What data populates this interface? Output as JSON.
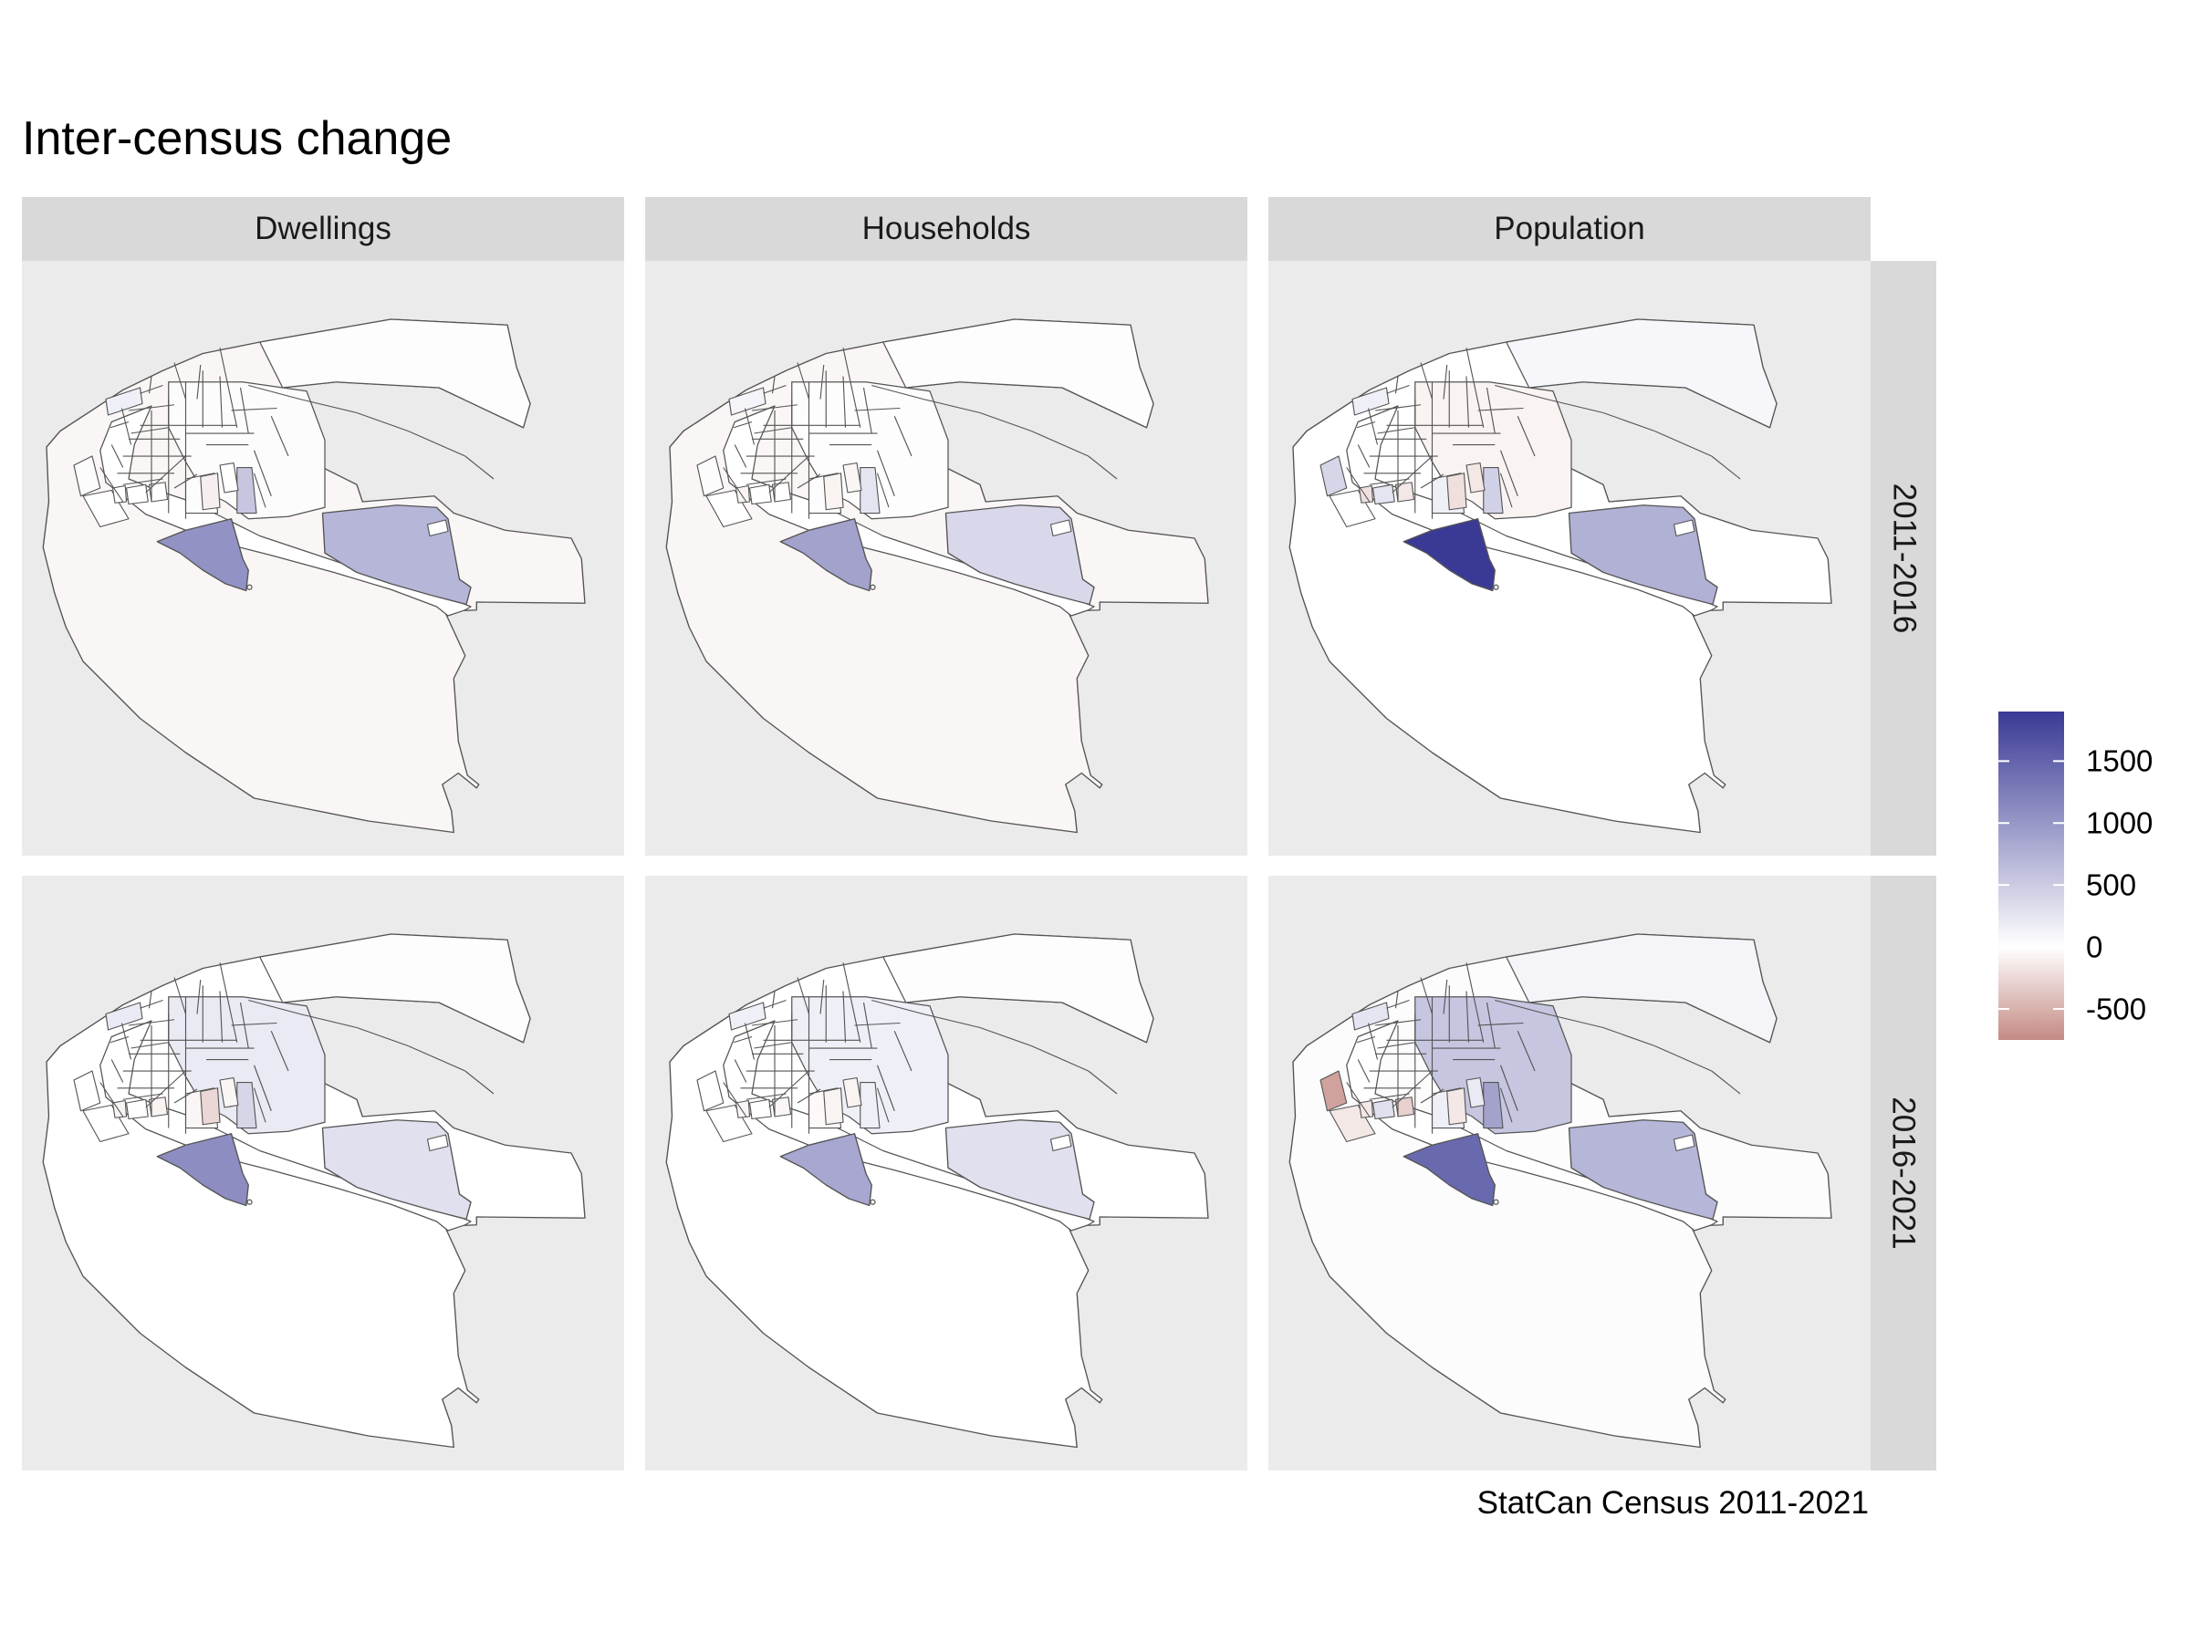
{
  "title": "Inter-census change",
  "columns": [
    "Dwellings",
    "Households",
    "Population"
  ],
  "rows": [
    "2011-2016",
    "2016-2021"
  ],
  "legend": {
    "labels": [
      "1500",
      "1000",
      "500",
      "0",
      "-500"
    ],
    "values": [
      1500,
      1000,
      500,
      0,
      -500
    ],
    "min": -750,
    "max": 1900,
    "color_low": "#c48a84",
    "color_mid": "#ffffff",
    "color_high": "#3a3a96"
  },
  "caption": "StatCan Census 2011-2021",
  "chart_data": {
    "type": "choropleth",
    "facets": [
      {
        "row": "2011-2016",
        "col": "Dwellings",
        "values": {
          "coast": -60,
          "north": 20,
          "mid": -20,
          "east": 700,
          "southwest": 1050,
          "tower": 550,
          "rowblock": 150,
          "center": 30,
          "westsliver": -20,
          "shore": 0,
          "blockA": 0,
          "blockB": 0,
          "narrowA": -100,
          "narrowB": 0,
          "smallpink": 0
        }
      },
      {
        "row": "2011-2016",
        "col": "Households",
        "values": {
          "coast": -60,
          "north": 20,
          "mid": 20,
          "east": 380,
          "southwest": 900,
          "tower": 250,
          "rowblock": 100,
          "center": 30,
          "westsliver": -20,
          "shore": 0,
          "blockA": 0,
          "blockB": 0,
          "narrowA": -80,
          "narrowB": -60,
          "smallpink": -80
        }
      },
      {
        "row": "2011-2016",
        "col": "Population",
        "values": {
          "coast": 0,
          "north": 80,
          "mid": -80,
          "east": 750,
          "southwest": 1900,
          "tower": 450,
          "rowblock": 150,
          "center": 150,
          "westsliver": 400,
          "shore": 0,
          "blockA": 250,
          "blockB": -150,
          "narrowA": -200,
          "narrowB": -150,
          "smallpink": -200
        }
      },
      {
        "row": "2016-2021",
        "col": "Dwellings",
        "values": {
          "coast": 0,
          "north": 20,
          "mid": 200,
          "east": 300,
          "southwest": 1100,
          "tower": 400,
          "rowblock": 200,
          "center": -60,
          "westsliver": 0,
          "shore": 0,
          "blockA": 0,
          "blockB": -80,
          "narrowA": -250,
          "narrowB": -60,
          "smallpink": -80
        }
      },
      {
        "row": "2016-2021",
        "col": "Households",
        "values": {
          "coast": 0,
          "north": 20,
          "mid": 150,
          "east": 300,
          "southwest": 850,
          "tower": 150,
          "rowblock": 150,
          "center": -40,
          "westsliver": 0,
          "shore": 0,
          "blockA": 0,
          "blockB": -60,
          "narrowA": -80,
          "narrowB": -80,
          "smallpink": -60
        }
      },
      {
        "row": "2016-2021",
        "col": "Population",
        "values": {
          "coast": 30,
          "north": 100,
          "mid": 550,
          "east": 700,
          "southwest": 1450,
          "tower": 900,
          "rowblock": 250,
          "center": 150,
          "westsliver": -600,
          "shore": -150,
          "blockA": 300,
          "blockB": -300,
          "narrowA": -150,
          "narrowB": 200,
          "smallpink": -150
        }
      }
    ]
  }
}
